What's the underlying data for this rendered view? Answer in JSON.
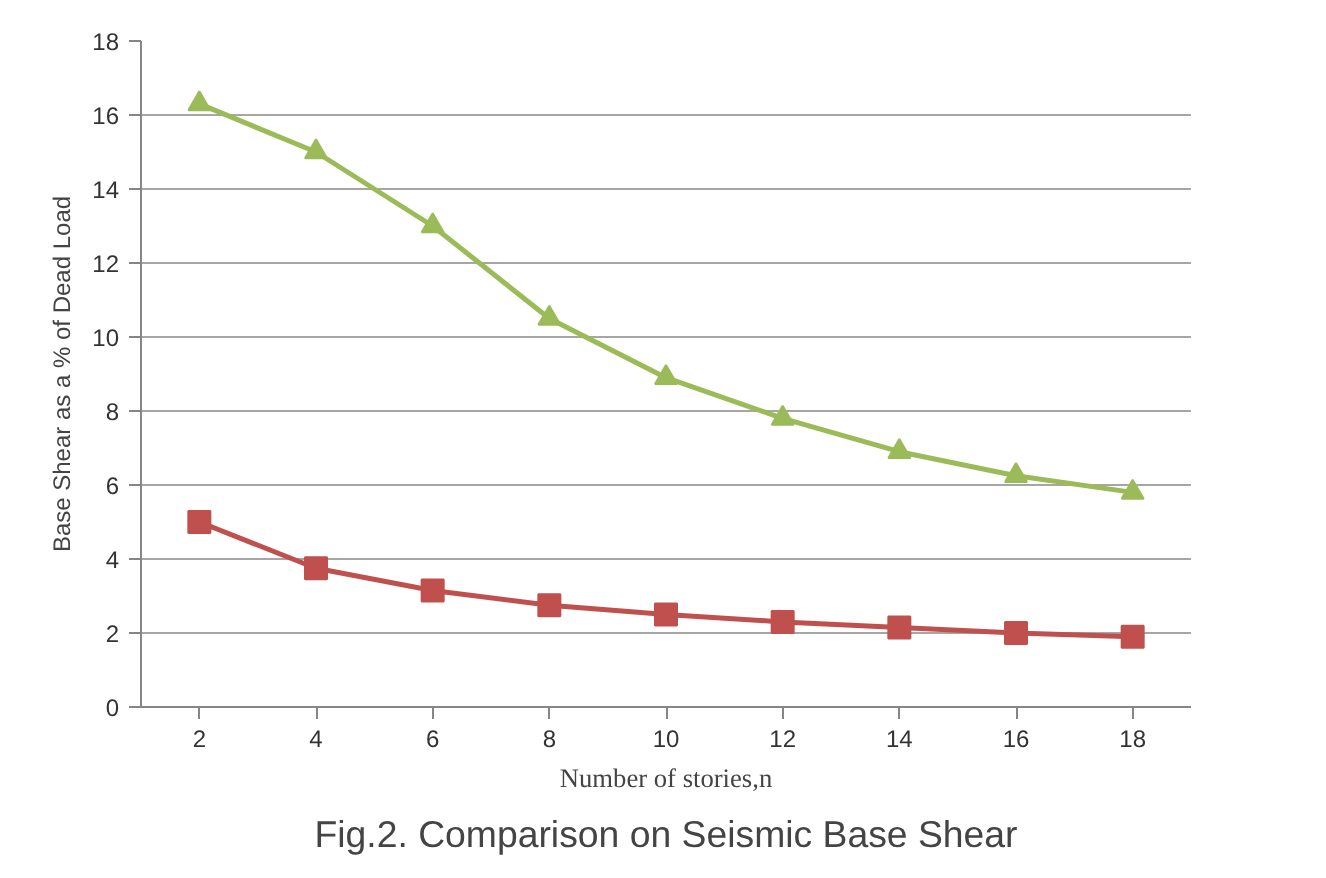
{
  "chart_data": {
    "type": "line",
    "title": "Fig.2. Comparison on Seismic Base Shear",
    "xlabel": "Number of stories,n",
    "ylabel": "Base Shear as a % of Dead Load",
    "categories": [
      "2",
      "4",
      "6",
      "8",
      "10",
      "12",
      "14",
      "16",
      "18"
    ],
    "series": [
      {
        "color": "#9bbb59",
        "marker": "triangle",
        "values": [
          16.3,
          15.0,
          13.0,
          10.5,
          8.9,
          7.8,
          6.9,
          6.25,
          5.8
        ]
      },
      {
        "color": "#c0504d",
        "marker": "square",
        "values": [
          5.0,
          3.75,
          3.15,
          2.75,
          2.5,
          2.3,
          2.15,
          2.0,
          1.9
        ]
      }
    ],
    "ylim": [
      0,
      18
    ],
    "yticks": [
      0,
      2,
      4,
      6,
      8,
      10,
      12,
      14,
      16,
      18
    ],
    "grid": "y",
    "line_style": "solid"
  }
}
